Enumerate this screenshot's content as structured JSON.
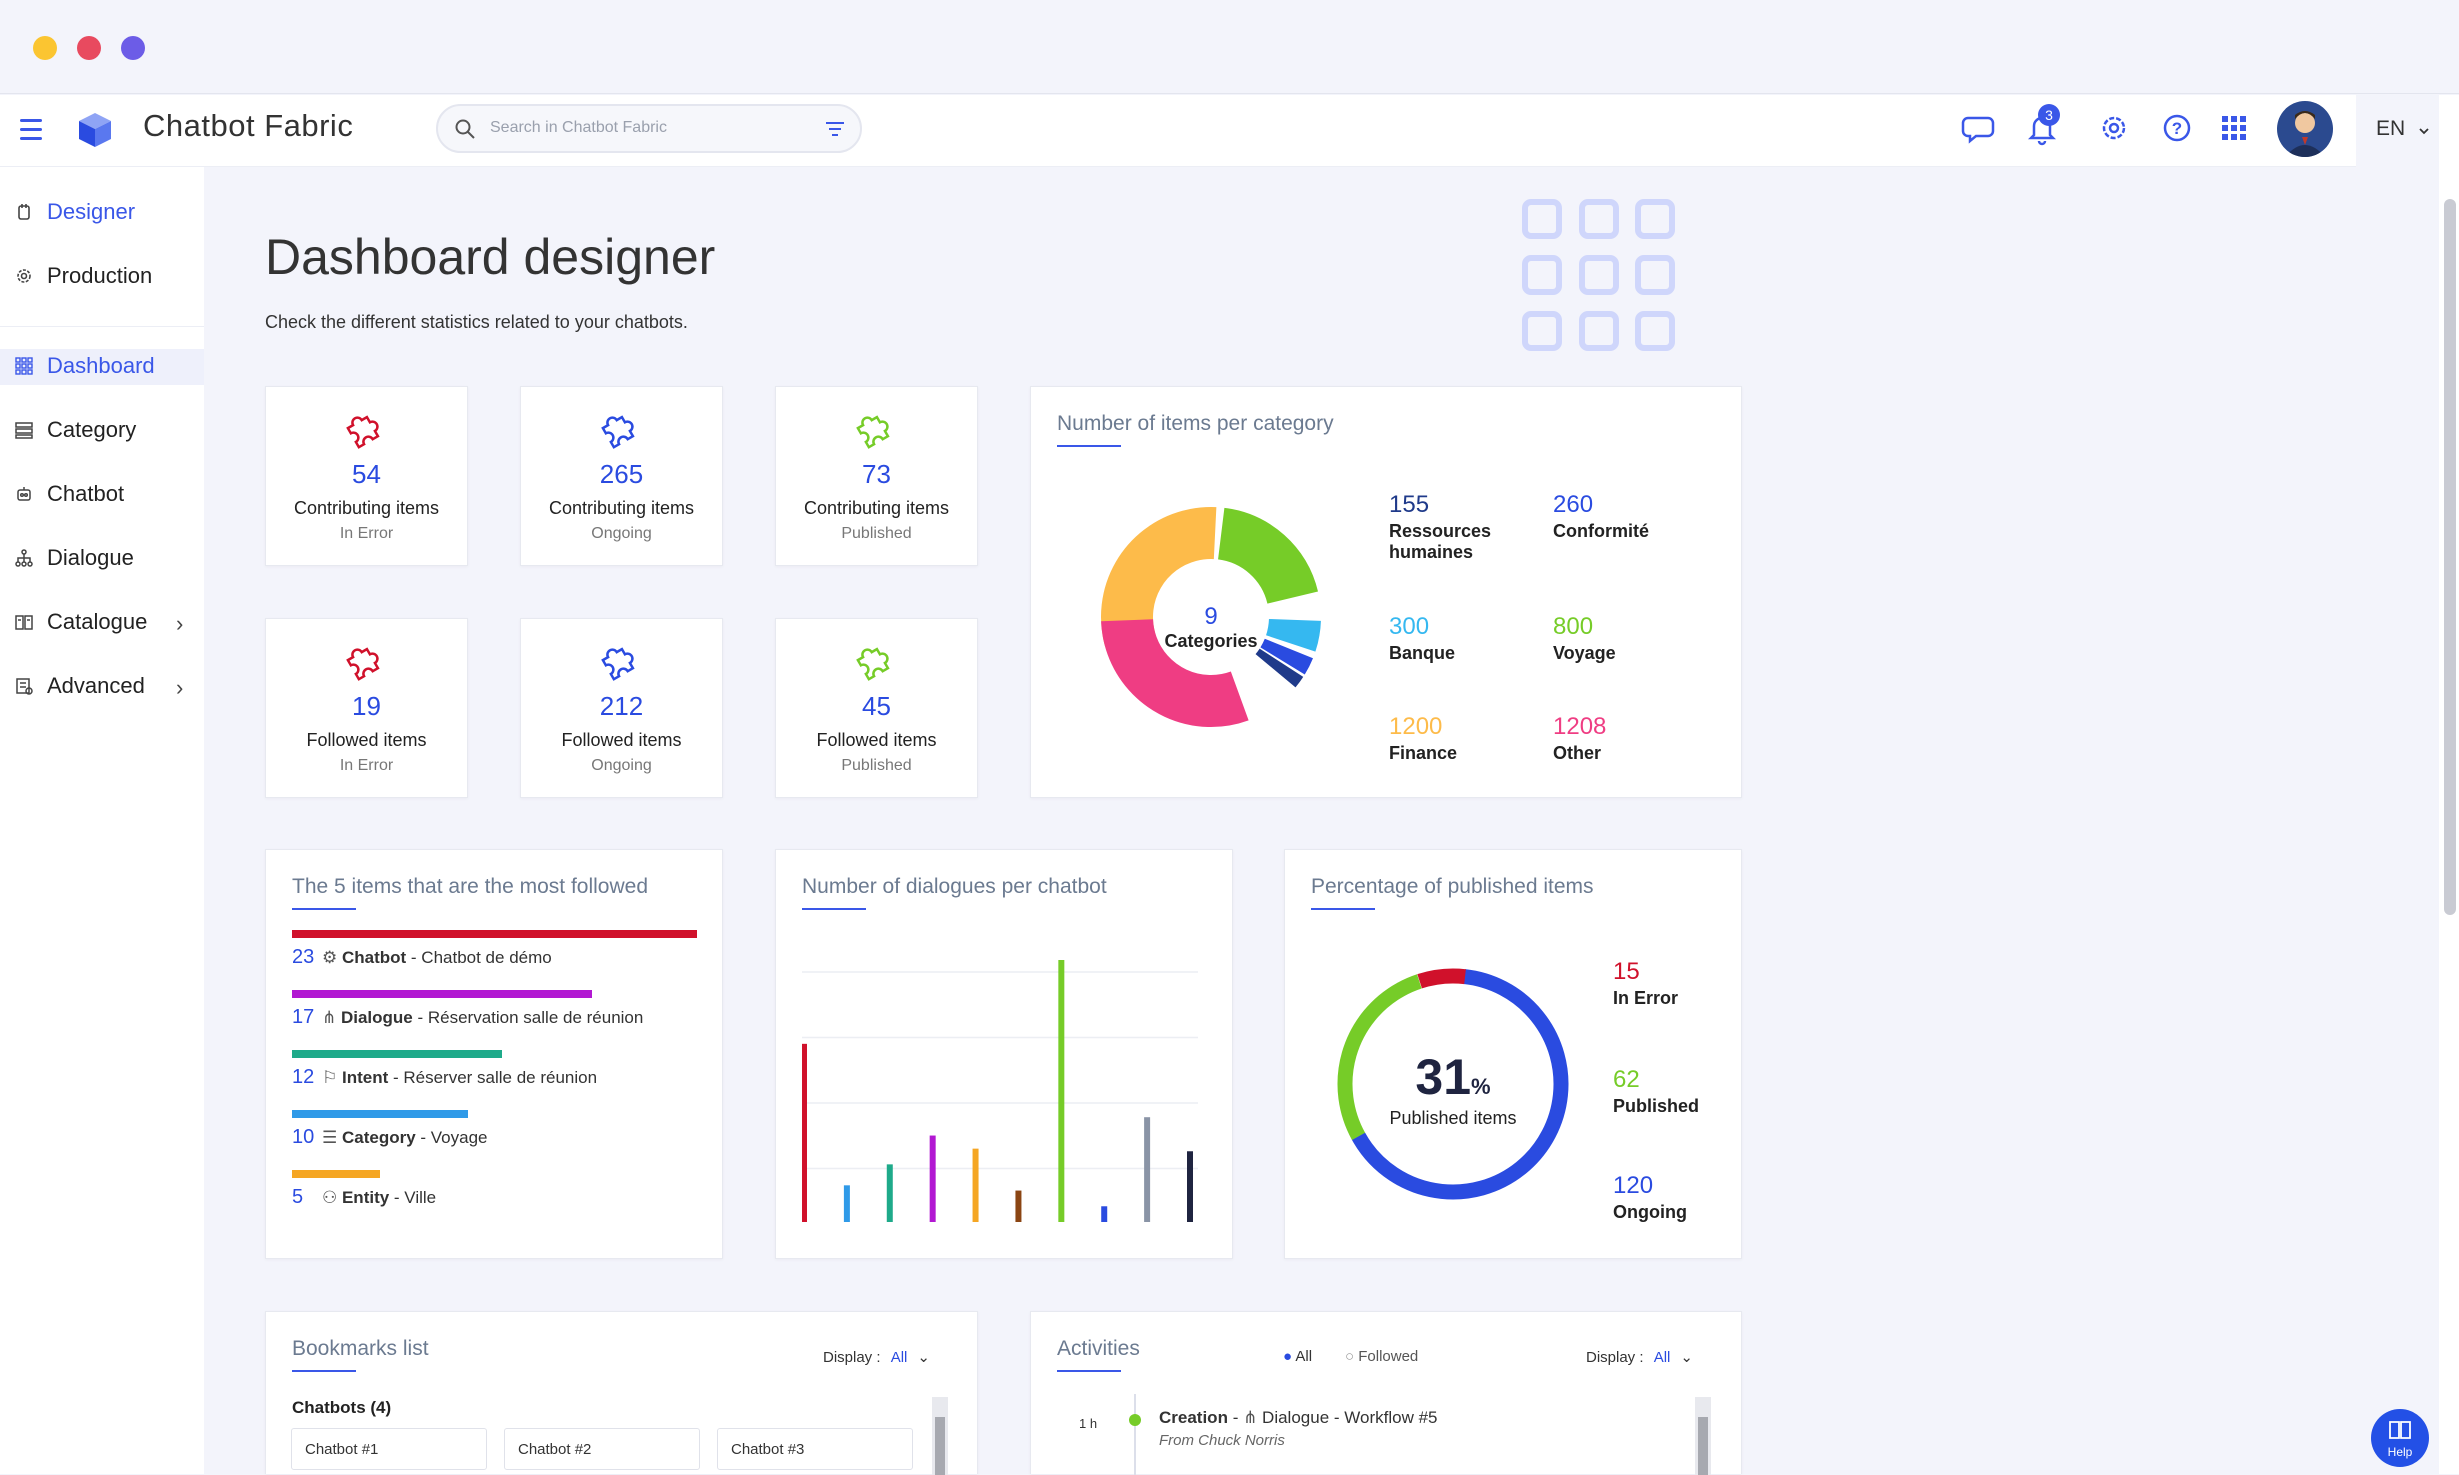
{
  "window": {
    "dots": [
      "#fbc531",
      "#e84a5f",
      "#6c5ce7"
    ]
  },
  "app": {
    "title": "Chatbot Fabric",
    "search_placeholder": "Search in Chatbot Fabric",
    "notifications": "3",
    "language": "EN"
  },
  "sidebar": {
    "top": [
      {
        "label": "Designer",
        "icon": "hand-icon"
      },
      {
        "label": "Production",
        "icon": "gear-icon"
      }
    ],
    "items": [
      {
        "label": "Dashboard",
        "icon": "grid-icon"
      },
      {
        "label": "Category",
        "icon": "category-icon"
      },
      {
        "label": "Chatbot",
        "icon": "robot-icon"
      },
      {
        "label": "Dialogue",
        "icon": "tree-icon"
      },
      {
        "label": "Catalogue",
        "icon": "book-icon"
      },
      {
        "label": "Advanced",
        "icon": "advanced-icon"
      }
    ]
  },
  "page": {
    "title": "Dashboard designer",
    "subtitle": "Check the different statistics related to your chatbots."
  },
  "stats": [
    {
      "value": "54",
      "label": "Contributing items",
      "status": "In Error",
      "color": "#d0112b"
    },
    {
      "value": "265",
      "label": "Contributing items",
      "status": "Ongoing",
      "color": "#2a4be0"
    },
    {
      "value": "73",
      "label": "Contributing items",
      "status": "Published",
      "color": "#76cc28"
    },
    {
      "value": "19",
      "label": "Followed items",
      "status": "In Error",
      "color": "#d0112b"
    },
    {
      "value": "212",
      "label": "Followed items",
      "status": "Ongoing",
      "color": "#2a4be0"
    },
    {
      "value": "45",
      "label": "Followed items",
      "status": "Published",
      "color": "#76cc28"
    }
  ],
  "category_card": {
    "title": "Number of items per category",
    "center_value": "9",
    "center_label": "Categories",
    "legend": [
      {
        "value": "155",
        "label": "Ressources humaines",
        "color": "#1f3a8a"
      },
      {
        "value": "260",
        "label": "Conformité",
        "color": "#2a4be0"
      },
      {
        "value": "300",
        "label": "Banque",
        "color": "#35b8f0"
      },
      {
        "value": "800",
        "label": "Voyage",
        "color": "#76cc28"
      },
      {
        "value": "1200",
        "label": "Finance",
        "color": "#fdbb4a"
      },
      {
        "value": "1208",
        "label": "Other",
        "color": "#ef3d83"
      }
    ]
  },
  "followed_card": {
    "title": "The 5 items that are the most followed",
    "items": [
      {
        "count": "23",
        "type": "Chatbot",
        "name": " - Chatbot de démo",
        "color": "#d0112b",
        "icon": "robot-icon"
      },
      {
        "count": "17",
        "type": "Dialogue",
        "name": " - Réservation salle de réunion",
        "color": "#b218d2",
        "icon": "tree-icon"
      },
      {
        "count": "12",
        "type": "Intent",
        "name": " - Réserver salle de réunion",
        "color": "#1eaa8a",
        "icon": "intent-icon"
      },
      {
        "count": "10",
        "type": "Category",
        "name": " - Voyage",
        "color": "#2f9ae8",
        "icon": "category-icon"
      },
      {
        "count": "5",
        "type": "Entity",
        "name": " - Ville",
        "color": "#f5a623",
        "icon": "entity-icon"
      }
    ]
  },
  "chart_data": {
    "type": "bar",
    "title": "Number of dialogues per chatbot",
    "ylim": [
      0,
      100
    ],
    "values": [
      68,
      14,
      22,
      33,
      28,
      12,
      100,
      6,
      40,
      27
    ],
    "colors": [
      "#d0112b",
      "#2f9ae8",
      "#1eaa8a",
      "#b218d2",
      "#f5a623",
      "#8b4513",
      "#76cc28",
      "#2a4be0",
      "#8a94a6",
      "#1f2440"
    ]
  },
  "published_card": {
    "title": "Percentage of published items",
    "percent": "31",
    "percent_sign": "%",
    "center_label": "Published items",
    "legend": [
      {
        "value": "15",
        "label": "In Error",
        "color": "#d0112b"
      },
      {
        "value": "62",
        "label": "Published",
        "color": "#76cc28"
      },
      {
        "value": "120",
        "label": "Ongoing",
        "color": "#2a4be0"
      }
    ]
  },
  "bookmarks": {
    "title": "Bookmarks list",
    "display_label": "Display :",
    "display_value": "All",
    "section": "Chatbots (4)",
    "chips": [
      "Chatbot #1",
      "Chatbot #2",
      "Chatbot #3"
    ]
  },
  "activities": {
    "title": "Activities",
    "filter_all": "All",
    "filter_followed": "Followed",
    "display_label": "Display :",
    "display_value": "All",
    "entry": {
      "time": "1 h",
      "action": "Creation",
      "separator": " - ",
      "object": "Dialogue - Workflow #5",
      "author": "From Chuck Norris"
    }
  },
  "help": {
    "label": "Help"
  }
}
